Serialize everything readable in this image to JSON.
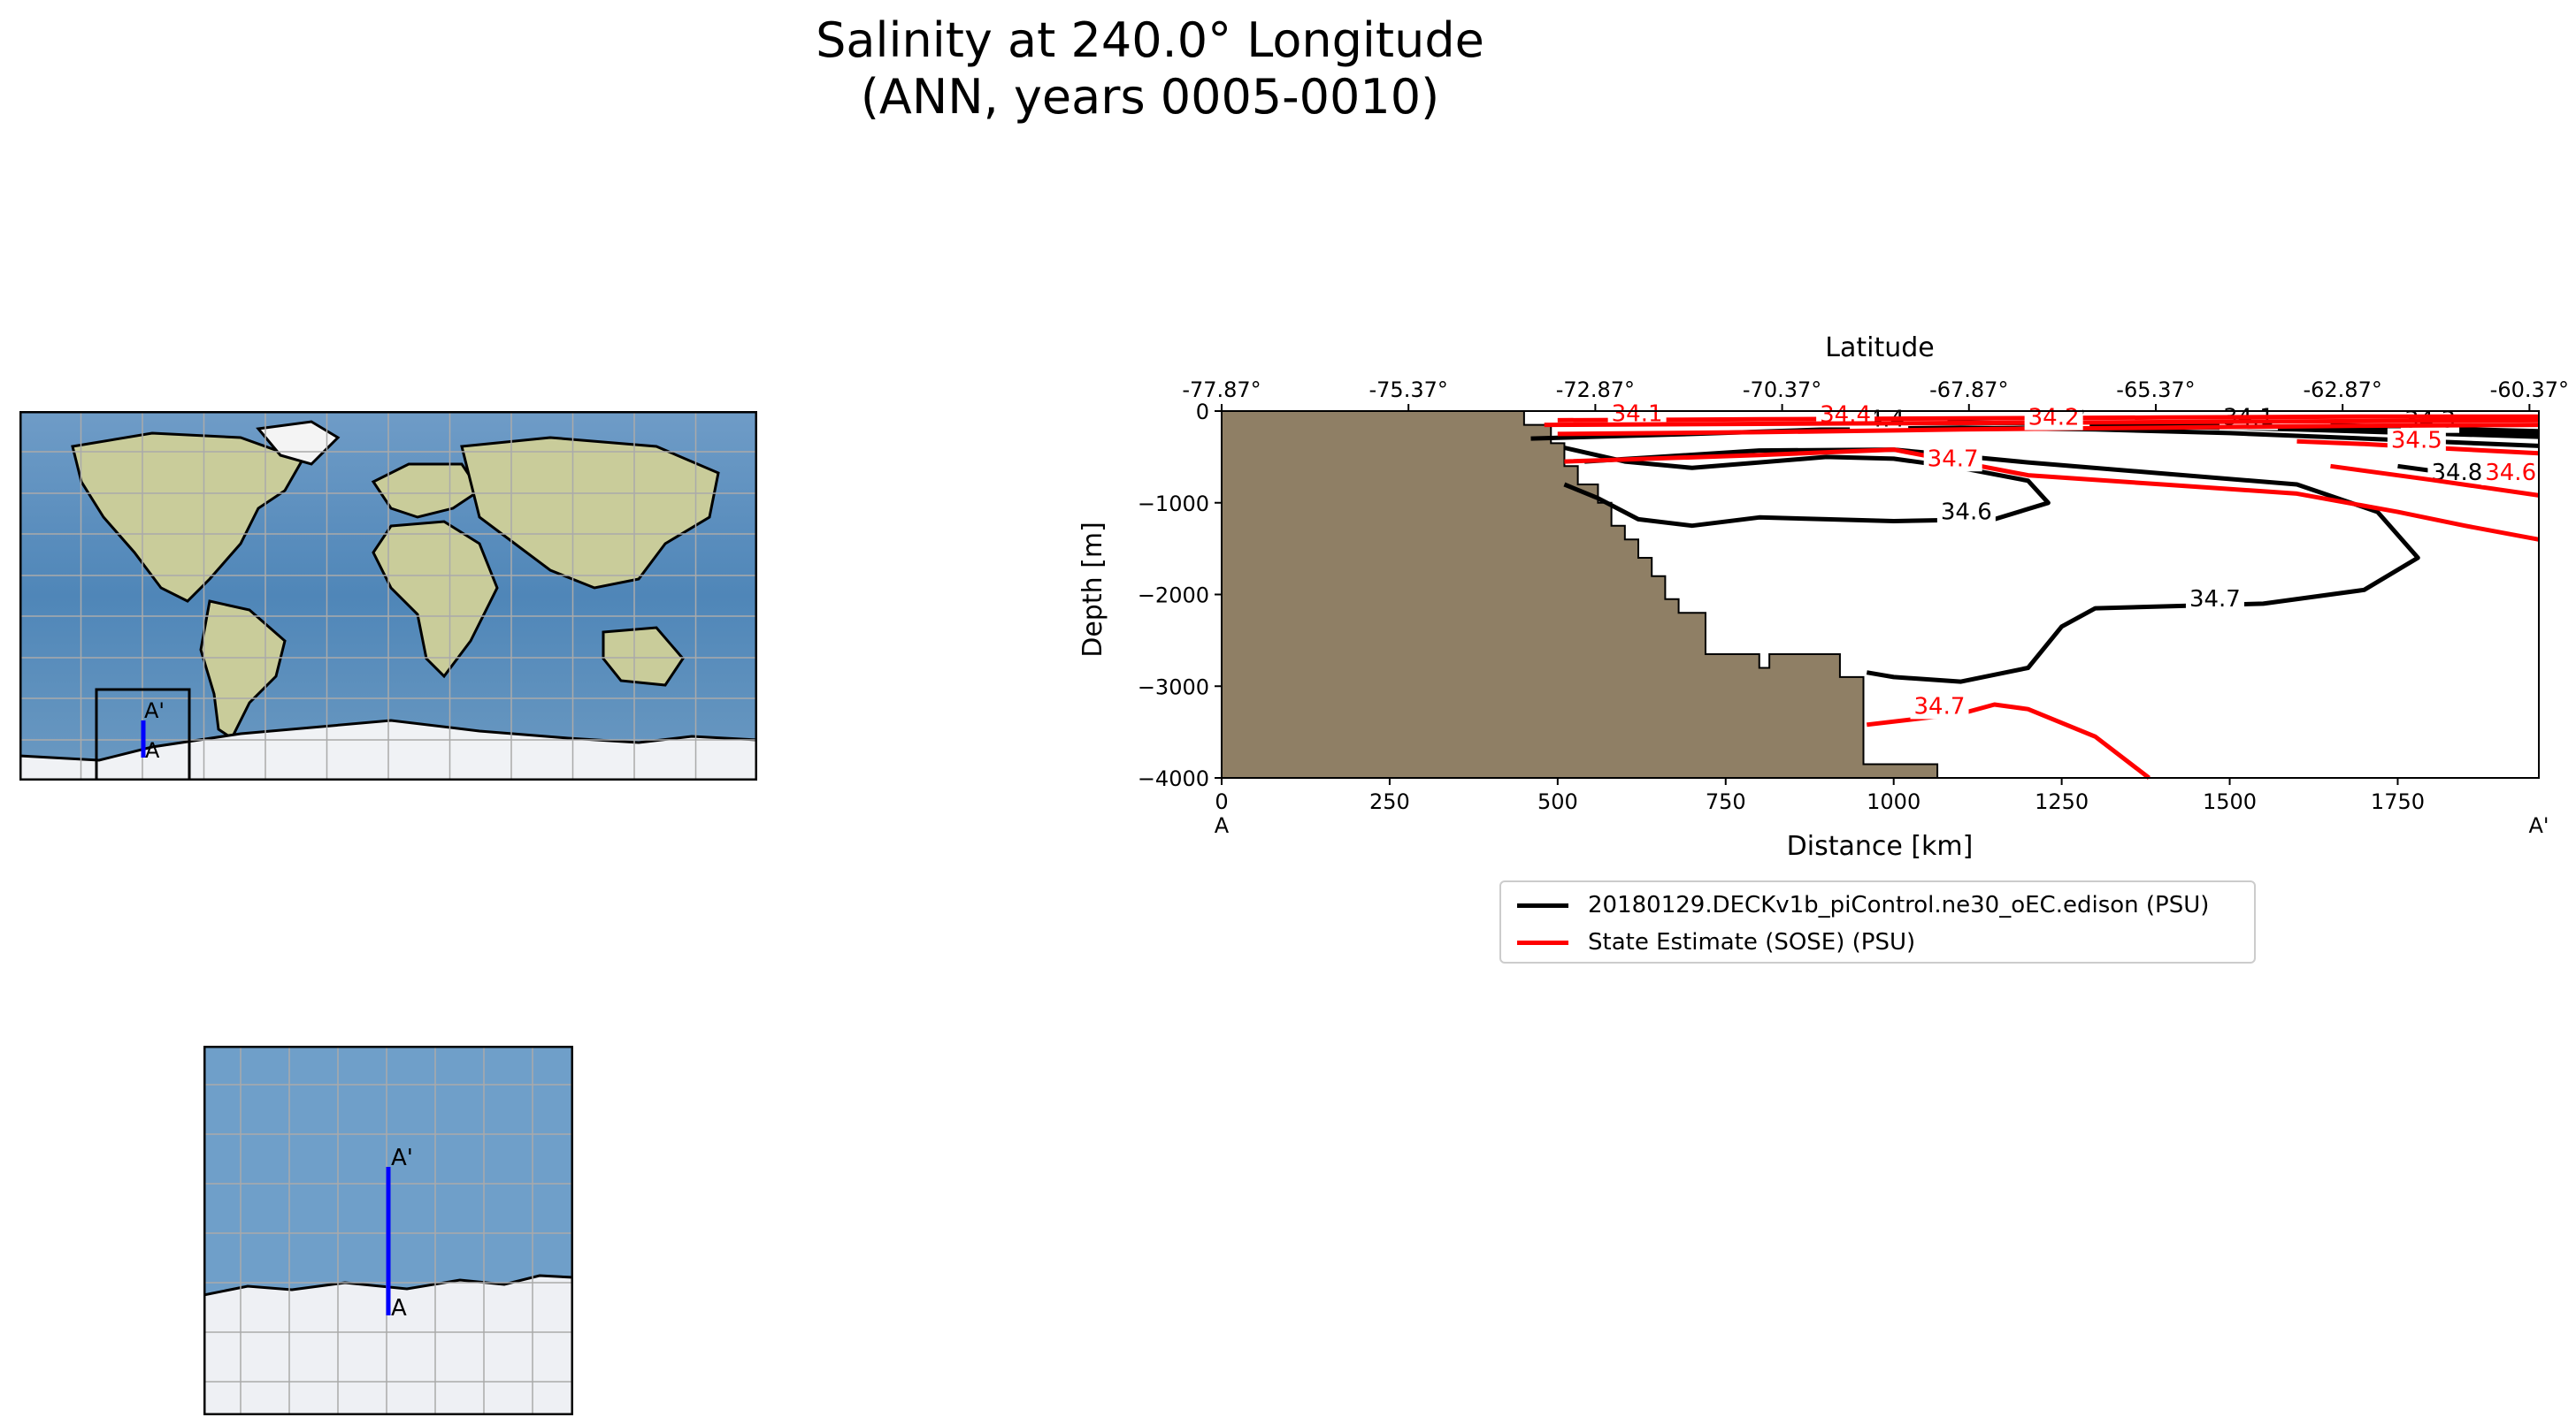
{
  "title": {
    "line1": "Salinity at 240.0° Longitude",
    "line2": "(ANN, years 0005-0010)"
  },
  "maps": {
    "global_label_start": "A",
    "global_label_end": "A'",
    "inset_label_start": "A",
    "inset_label_end": "A'",
    "transect_color": "#0000ff",
    "land_icon": "world-map-icon",
    "inset_icon": "antarctic-inset-map-icon"
  },
  "legend": {
    "entries": [
      {
        "label": "20180129.DECKv1b_piControl.ne30_oEC.edison (PSU)",
        "color": "#000000"
      },
      {
        "label": "State Estimate (SOSE) (PSU)",
        "color": "#ff0000"
      }
    ]
  },
  "chart_data": {
    "type": "contour",
    "title": "Salinity at 240.0° Longitude (ANN, years 0005-0010)",
    "xlabel": "Distance [km]",
    "ylabel": "Depth [m]",
    "top_xlabel": "Latitude",
    "xlim": [
      0,
      1960
    ],
    "ylim": [
      -4000,
      0
    ],
    "x_ticks": [
      0,
      250,
      500,
      750,
      1000,
      1250,
      1500,
      1750
    ],
    "x_tick_labels": [
      "0",
      "250",
      "500",
      "750",
      "1000",
      "1250",
      "1500",
      "1750"
    ],
    "y_ticks": [
      0,
      -1000,
      -2000,
      -3000,
      -4000
    ],
    "y_tick_labels": [
      "0",
      "−1000",
      "−2000",
      "−3000",
      "−4000"
    ],
    "lat_ticks_km": [
      0,
      278,
      556,
      834,
      1112,
      1390,
      1668,
      1946
    ],
    "lat_tick_labels": [
      "-77.87°",
      "-75.37°",
      "-72.87°",
      "-70.37°",
      "-67.87°",
      "-65.37°",
      "-62.87°",
      "-60.37°"
    ],
    "endpoint_start": "A",
    "endpoint_end": "A'",
    "land_color": "#8f7f65",
    "bathymetry": [
      [
        0,
        0
      ],
      [
        450,
        0
      ],
      [
        450,
        -150
      ],
      [
        490,
        -150
      ],
      [
        490,
        -350
      ],
      [
        510,
        -350
      ],
      [
        510,
        -600
      ],
      [
        530,
        -600
      ],
      [
        530,
        -800
      ],
      [
        560,
        -800
      ],
      [
        560,
        -1000
      ],
      [
        580,
        -1000
      ],
      [
        580,
        -1250
      ],
      [
        600,
        -1250
      ],
      [
        600,
        -1400
      ],
      [
        620,
        -1400
      ],
      [
        620,
        -1600
      ],
      [
        640,
        -1600
      ],
      [
        640,
        -1800
      ],
      [
        660,
        -1800
      ],
      [
        660,
        -2050
      ],
      [
        680,
        -2050
      ],
      [
        680,
        -2200
      ],
      [
        720,
        -2200
      ],
      [
        720,
        -2650
      ],
      [
        800,
        -2650
      ],
      [
        800,
        -2800
      ],
      [
        815,
        -2800
      ],
      [
        815,
        -2650
      ],
      [
        920,
        -2650
      ],
      [
        920,
        -2900
      ],
      [
        955,
        -2900
      ],
      [
        955,
        -3850
      ],
      [
        1065,
        -3850
      ],
      [
        1065,
        -4000
      ],
      [
        0,
        -4000
      ]
    ],
    "series": [
      {
        "name": "20180129.DECKv1b_piControl.ne30_oEC.edison (PSU)",
        "color": "#000000",
        "contours": [
          {
            "level": "34.6",
            "points": [
              [
                510,
                -400
              ],
              [
                600,
                -550
              ],
              [
                700,
                -620
              ],
              [
                800,
                -560
              ],
              [
                900,
                -500
              ],
              [
                1000,
                -520
              ],
              [
                1100,
                -620
              ],
              [
                1200,
                -760
              ],
              [
                1230,
                -1000
              ],
              [
                1150,
                -1180
              ],
              [
                1000,
                -1200
              ],
              [
                900,
                -1180
              ],
              [
                800,
                -1160
              ],
              [
                700,
                -1250
              ],
              [
                620,
                -1180
              ],
              [
                560,
                -950
              ],
              [
                510,
                -800
              ]
            ],
            "label_at": [
              1070,
              -1180
            ]
          },
          {
            "level": "34.7",
            "points": [
              [
                540,
                -550
              ],
              [
                650,
                -500
              ],
              [
                800,
                -430
              ],
              [
                1000,
                -420
              ],
              [
                1200,
                -560
              ],
              [
                1400,
                -680
              ],
              [
                1600,
                -800
              ],
              [
                1720,
                -1100
              ],
              [
                1780,
                -1600
              ],
              [
                1700,
                -1950
              ],
              [
                1550,
                -2100
              ],
              [
                1300,
                -2150
              ],
              [
                1250,
                -2350
              ],
              [
                1200,
                -2800
              ],
              [
                1100,
                -2950
              ],
              [
                1000,
                -2900
              ],
              [
                960,
                -2850
              ]
            ],
            "label_at": [
              1440,
              -2130
            ]
          },
          {
            "level": "34.4",
            "points": [
              [
                460,
                -300
              ],
              [
                700,
                -250
              ],
              [
                900,
                -200
              ],
              [
                1100,
                -180
              ],
              [
                1300,
                -200
              ],
              [
                1500,
                -240
              ],
              [
                1700,
                -300
              ],
              [
                1960,
                -380
              ]
            ],
            "label_at": [
              940,
              -170
            ]
          },
          {
            "level": "34.2",
            "points": [
              [
                1080,
                -120
              ],
              [
                1300,
                -150
              ],
              [
                1600,
                -200
              ],
              [
                1960,
                -280
              ]
            ],
            "label_at": [
              1210,
              -140
            ]
          },
          {
            "level": "34.1",
            "points": [
              [
                1400,
                -140
              ],
              [
                1700,
                -200
              ],
              [
                1960,
                -240
              ]
            ],
            "label_at": [
              1490,
              -150
            ]
          },
          {
            "level": "34.3",
            "points": [
              [
                1650,
                -150
              ],
              [
                1800,
                -190
              ],
              [
                1960,
                -220
              ]
            ],
            "label_at": [
              1760,
              -180
            ]
          },
          {
            "level": "34.8",
            "points": [
              [
                1750,
                -600
              ],
              [
                1850,
                -700
              ],
              [
                1960,
                -750
              ]
            ],
            "label_at": [
              1800,
              -750
            ]
          }
        ]
      },
      {
        "name": "State Estimate (SOSE) (PSU)",
        "color": "#ff0000",
        "contours": [
          {
            "level": "34.1",
            "points": [
              [
                500,
                -100
              ],
              [
                800,
                -90
              ],
              [
                1100,
                -80
              ],
              [
                1400,
                -70
              ],
              [
                1700,
                -60
              ],
              [
                1960,
                -60
              ]
            ],
            "label_at": [
              580,
              -110
            ]
          },
          {
            "level": "34.4",
            "points": [
              [
                500,
                -250
              ],
              [
                800,
                -230
              ],
              [
                1100,
                -200
              ],
              [
                1400,
                -180
              ],
              [
                1700,
                -160
              ],
              [
                1960,
                -150
              ]
            ],
            "label_at": [
              890,
              -120
            ]
          },
          {
            "level": "34.2",
            "points": [
              [
                480,
                -150
              ],
              [
                800,
                -140
              ],
              [
                1100,
                -130
              ],
              [
                1400,
                -120
              ],
              [
                1700,
                -110
              ],
              [
                1960,
                -100
              ]
            ],
            "label_at": [
              1200,
              -150
            ]
          },
          {
            "level": "34.5",
            "points": [
              [
                1600,
                -330
              ],
              [
                1700,
                -360
              ],
              [
                1800,
                -400
              ],
              [
                1960,
                -460
              ]
            ],
            "label_at": [
              1740,
              -400
            ]
          },
          {
            "level": "34.7",
            "points": [
              [
                510,
                -550
              ],
              [
                800,
                -480
              ],
              [
                1000,
                -420
              ],
              [
                1200,
                -700
              ],
              [
                1400,
                -800
              ],
              [
                1600,
                -900
              ],
              [
                1750,
                -1100
              ],
              [
                1850,
                -1250
              ],
              [
                1960,
                -1400
              ]
            ],
            "label_at": [
              1050,
              -600
            ]
          },
          {
            "level": "34.6",
            "points": [
              [
                1650,
                -600
              ],
              [
                1800,
                -750
              ],
              [
                1960,
                -920
              ]
            ],
            "label_at": [
              1880,
              -750
            ]
          },
          {
            "level": "34.7",
            "points": [
              [
                960,
                -3420
              ],
              [
                1100,
                -3300
              ],
              [
                1150,
                -3200
              ],
              [
                1200,
                -3250
              ],
              [
                1300,
                -3550
              ],
              [
                1380,
                -4000
              ]
            ],
            "label_at": [
              1030,
              -3300
            ]
          }
        ]
      }
    ]
  }
}
